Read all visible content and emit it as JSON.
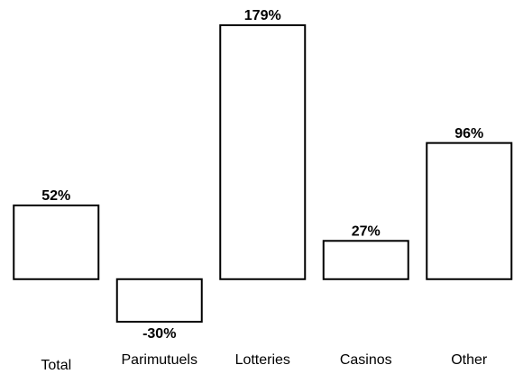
{
  "chart_data": {
    "type": "bar",
    "categories": [
      "Total",
      "Parimutuels",
      "Lotteries",
      "Casinos",
      "Other"
    ],
    "values": [
      52,
      -30,
      179,
      27,
      96
    ],
    "value_labels": [
      "52%",
      "-30%",
      "179%",
      "27%",
      "96%"
    ],
    "color": "#000000"
  }
}
